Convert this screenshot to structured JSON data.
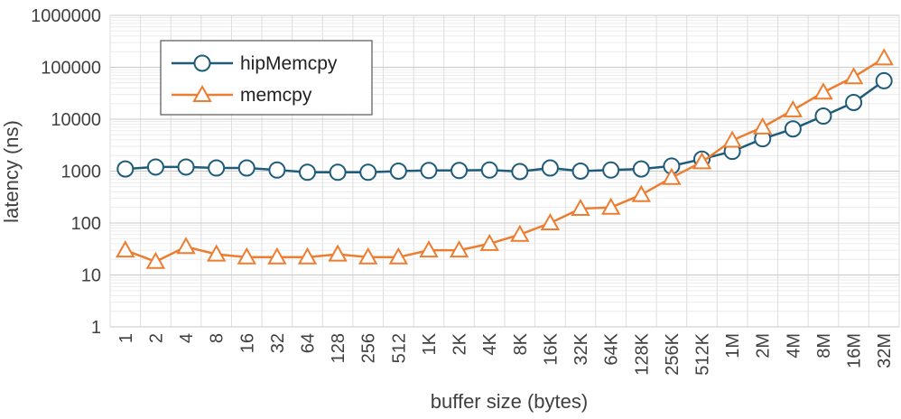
{
  "chart_data": {
    "type": "line",
    "title": "",
    "xlabel": "buffer size (bytes)",
    "ylabel": "latency (ns)",
    "y_scale": "log",
    "ylim": [
      1,
      1000000
    ],
    "y_ticks": [
      "1",
      "10",
      "100",
      "1000",
      "10000",
      "100000",
      "1000000"
    ],
    "grid": true,
    "legend_position": "top-left",
    "categories": [
      "1",
      "2",
      "4",
      "8",
      "16",
      "32",
      "64",
      "128",
      "256",
      "512",
      "1K",
      "2K",
      "4K",
      "8K",
      "16K",
      "32K",
      "64K",
      "128K",
      "256K",
      "512K",
      "1M",
      "2M",
      "4M",
      "8M",
      "16M",
      "32M"
    ],
    "series": [
      {
        "name": "hipMemcpy",
        "color": "#1f5c7a",
        "marker": "circle",
        "values": [
          1100,
          1200,
          1200,
          1150,
          1150,
          1050,
          950,
          950,
          950,
          1000,
          1030,
          1030,
          1050,
          980,
          1150,
          1000,
          1050,
          1100,
          1250,
          1700,
          2400,
          4200,
          6500,
          11500,
          21000,
          55000
        ]
      },
      {
        "name": "memcpy",
        "color": "#ed7d31",
        "marker": "triangle",
        "values": [
          30,
          18,
          35,
          25,
          22,
          22,
          22,
          25,
          22,
          22,
          30,
          30,
          40,
          60,
          100,
          190,
          200,
          350,
          750,
          1500,
          3900,
          7000,
          15000,
          33000,
          65000,
          150000
        ]
      }
    ]
  }
}
